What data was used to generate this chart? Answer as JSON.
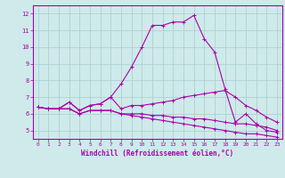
{
  "xlabel": "Windchill (Refroidissement éolien,°C)",
  "ylabel": "",
  "background_color": "#ceeaea",
  "grid_color": "#aacccc",
  "line_color": "#aa00aa",
  "x_hours": [
    0,
    1,
    2,
    3,
    4,
    5,
    6,
    7,
    8,
    9,
    10,
    11,
    12,
    13,
    14,
    15,
    16,
    17,
    18,
    19,
    20,
    21,
    22,
    23
  ],
  "line1": [
    6.4,
    6.3,
    6.3,
    6.7,
    6.2,
    6.5,
    6.6,
    7.0,
    7.8,
    8.8,
    10.0,
    11.3,
    11.3,
    11.5,
    11.5,
    11.9,
    10.5,
    9.7,
    7.5,
    5.5,
    6.0,
    5.4,
    5.0,
    4.9
  ],
  "line2": [
    6.4,
    6.3,
    6.3,
    6.7,
    6.2,
    6.5,
    6.6,
    7.0,
    6.3,
    6.5,
    6.5,
    6.6,
    6.7,
    6.8,
    7.0,
    7.1,
    7.2,
    7.3,
    7.4,
    7.0,
    6.5,
    6.2,
    5.8,
    5.5
  ],
  "line3": [
    6.4,
    6.3,
    6.3,
    6.3,
    6.0,
    6.2,
    6.2,
    6.2,
    6.0,
    6.0,
    6.0,
    5.9,
    5.9,
    5.8,
    5.8,
    5.7,
    5.7,
    5.6,
    5.5,
    5.4,
    5.4,
    5.3,
    5.2,
    5.0
  ],
  "line4": [
    6.4,
    6.3,
    6.3,
    6.3,
    6.0,
    6.2,
    6.2,
    6.2,
    6.0,
    5.9,
    5.8,
    5.7,
    5.6,
    5.5,
    5.4,
    5.3,
    5.2,
    5.1,
    5.0,
    4.9,
    4.8,
    4.8,
    4.7,
    4.6
  ],
  "xlim": [
    -0.5,
    23.5
  ],
  "ylim": [
    4.5,
    12.5
  ],
  "yticks": [
    5,
    6,
    7,
    8,
    9,
    10,
    11,
    12
  ],
  "xticks": [
    0,
    1,
    2,
    3,
    4,
    5,
    6,
    7,
    8,
    9,
    10,
    11,
    12,
    13,
    14,
    15,
    16,
    17,
    18,
    19,
    20,
    21,
    22,
    23
  ]
}
